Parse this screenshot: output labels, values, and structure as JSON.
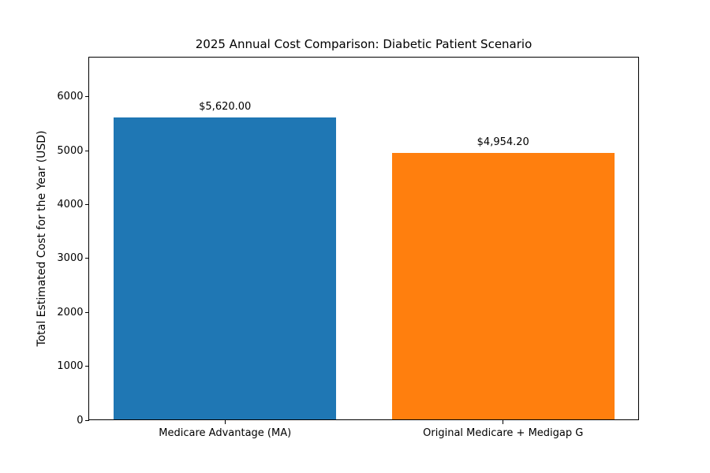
{
  "chart_data": {
    "type": "bar",
    "title": "2025 Annual Cost Comparison: Diabetic Patient Scenario",
    "xlabel": "",
    "ylabel": "Total Estimated Cost for the Year (USD)",
    "categories": [
      "Medicare Advantage (MA)",
      "Original Medicare + Medigap G"
    ],
    "values": [
      5620.0,
      4954.2
    ],
    "value_labels": [
      "$5,620.00",
      "$4,954.20"
    ],
    "bar_colors": [
      "#1f77b4",
      "#ff7f0e"
    ],
    "bar_x": [
      0,
      1
    ],
    "bar_width": 0.8,
    "yticks": [
      0,
      1000,
      2000,
      3000,
      4000,
      5000,
      6000
    ],
    "ytick_labels": [
      "0",
      "1000",
      "2000",
      "3000",
      "4000",
      "5000",
      "6000"
    ],
    "ylim": [
      0,
      6744
    ],
    "xlim": [
      -0.49,
      1.49
    ],
    "grid": false,
    "legend": null,
    "background_color": "#ffffff",
    "text_color": "#000000"
  }
}
